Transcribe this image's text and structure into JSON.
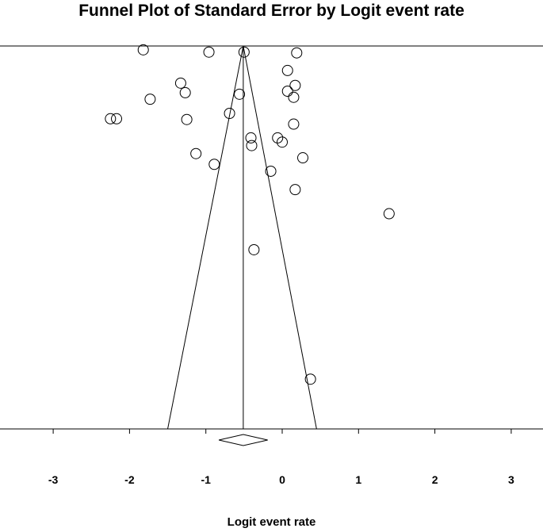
{
  "chart_data": {
    "type": "scatter",
    "title": "Funnel Plot of Standard Error by Logit event rate",
    "xlabel": "Logit event rate",
    "ylabel": "",
    "xlim": [
      -3.3,
      3.15
    ],
    "ylim": [
      0,
      1
    ],
    "y_reversed": true,
    "x_ticks": [
      -3,
      -2,
      -1,
      0,
      1,
      2,
      3
    ],
    "x_tick_labels": [
      "-3",
      "-2",
      "-1",
      "0",
      "1",
      "2",
      "3"
    ],
    "grid": false,
    "legend": "none",
    "pooled_estimate": {
      "x": -0.51,
      "ci_low": -0.83,
      "ci_high": -0.19
    },
    "funnel": {
      "center": -0.51,
      "apex_y": 0.0,
      "base_y": 1.0,
      "base_low": -1.5,
      "base_high": 0.45
    },
    "points": [
      {
        "x": -1.82,
        "y": 0.01
      },
      {
        "x": -0.96,
        "y": 0.016
      },
      {
        "x": -0.5,
        "y": 0.016
      },
      {
        "x": 0.19,
        "y": 0.018
      },
      {
        "x": 0.07,
        "y": 0.064
      },
      {
        "x": -1.33,
        "y": 0.097
      },
      {
        "x": 0.17,
        "y": 0.103
      },
      {
        "x": -1.27,
        "y": 0.122
      },
      {
        "x": -0.56,
        "y": 0.126
      },
      {
        "x": 0.07,
        "y": 0.118
      },
      {
        "x": 0.15,
        "y": 0.134
      },
      {
        "x": -1.73,
        "y": 0.139
      },
      {
        "x": -0.69,
        "y": 0.176
      },
      {
        "x": -2.25,
        "y": 0.19
      },
      {
        "x": -2.17,
        "y": 0.19
      },
      {
        "x": -1.25,
        "y": 0.192
      },
      {
        "x": 0.15,
        "y": 0.204
      },
      {
        "x": -0.41,
        "y": 0.24
      },
      {
        "x": -0.06,
        "y": 0.24
      },
      {
        "x": -0.4,
        "y": 0.26
      },
      {
        "x": 0.0,
        "y": 0.251
      },
      {
        "x": -1.13,
        "y": 0.281
      },
      {
        "x": 0.27,
        "y": 0.292
      },
      {
        "x": -0.89,
        "y": 0.309
      },
      {
        "x": -0.15,
        "y": 0.327
      },
      {
        "x": 0.17,
        "y": 0.375
      },
      {
        "x": 1.4,
        "y": 0.438
      },
      {
        "x": -0.37,
        "y": 0.532
      },
      {
        "x": 0.37,
        "y": 0.87
      }
    ]
  }
}
